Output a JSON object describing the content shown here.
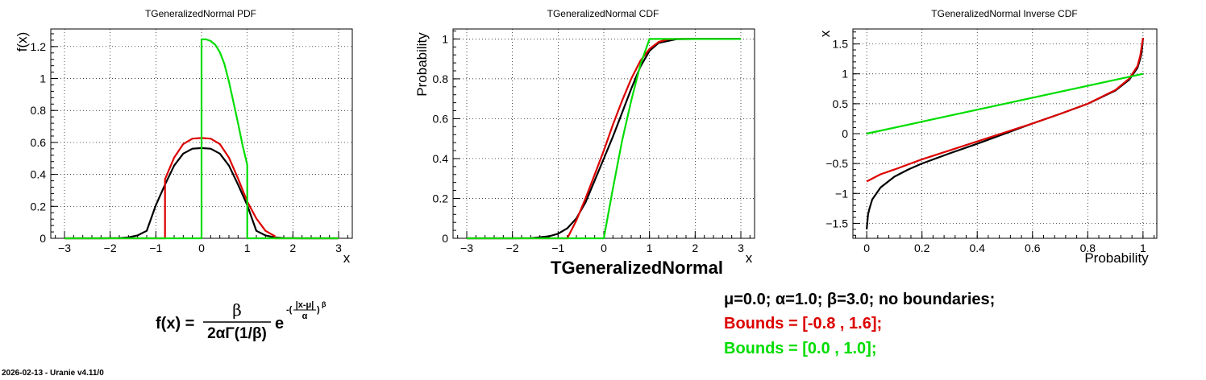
{
  "chart_data": [
    {
      "type": "line",
      "title": "TGeneralizedNormal PDF",
      "xlabel": "x",
      "ylabel": "f(x)",
      "xlim": [
        -3.3,
        3.3
      ],
      "ylim": [
        0,
        1.31
      ],
      "xticks": [
        -3,
        -2,
        -1,
        0,
        1,
        2,
        3
      ],
      "yticks": [
        0,
        0.2,
        0.4,
        0.6,
        0.8,
        1,
        1.2
      ],
      "xtick_labels": [
        "−3",
        "−2",
        "−1",
        "0",
        "1",
        "2",
        "3"
      ],
      "ytick_labels": [
        "0",
        "0.2",
        "0.4",
        "0.6",
        "0.8",
        "1",
        "1.2"
      ],
      "grid": true,
      "series": [
        {
          "color": "#000000",
          "x": [
            -3,
            -2.6,
            -2.2,
            -2,
            -1.8,
            -1.6,
            -1.4,
            -1.2,
            -1,
            -0.8,
            -0.6,
            -0.4,
            -0.2,
            0,
            0.2,
            0.4,
            0.6,
            0.8,
            1,
            1.2,
            1.4,
            1.6,
            1.8,
            2,
            2.2,
            2.6,
            3
          ],
          "y": [
            0,
            0,
            0.0001,
            0.0004,
            0.0016,
            0.0058,
            0.018,
            0.047,
            0.207,
            0.336,
            0.455,
            0.53,
            0.561,
            0.565,
            0.561,
            0.53,
            0.455,
            0.336,
            0.207,
            0.047,
            0.018,
            0.0058,
            0.0016,
            0.0004,
            0.0001,
            0,
            0
          ]
        },
        {
          "color": "#dd0000",
          "x": [
            -3,
            -0.8,
            -0.8,
            -0.6,
            -0.4,
            -0.2,
            0,
            0.2,
            0.4,
            0.6,
            0.8,
            1,
            1.2,
            1.4,
            1.6,
            1.6,
            3
          ],
          "y": [
            0,
            0,
            0.37,
            0.505,
            0.59,
            0.624,
            0.628,
            0.624,
            0.59,
            0.505,
            0.374,
            0.23,
            0.124,
            0.047,
            0.014,
            0,
            0
          ]
        },
        {
          "color": "#00dd00",
          "x": [
            -3,
            0,
            0,
            0.1,
            0.2,
            0.3,
            0.4,
            0.5,
            0.6,
            0.7,
            0.8,
            0.9,
            1,
            1,
            3
          ],
          "y": [
            0,
            0,
            1.245,
            1.245,
            1.235,
            1.211,
            1.165,
            1.092,
            0.98,
            0.85,
            0.72,
            0.58,
            0.46,
            0,
            0
          ]
        }
      ]
    },
    {
      "type": "line",
      "title": "TGeneralizedNormal CDF",
      "xlabel": "x",
      "ylabel": "Probability",
      "xlim": [
        -3.3,
        3.3
      ],
      "ylim": [
        0,
        1.05
      ],
      "xticks": [
        -3,
        -2,
        -1,
        0,
        1,
        2,
        3
      ],
      "yticks": [
        0,
        0.2,
        0.4,
        0.6,
        0.8,
        1
      ],
      "xtick_labels": [
        "−3",
        "−2",
        "−1",
        "0",
        "1",
        "2",
        "3"
      ],
      "ytick_labels": [
        "0",
        "0.2",
        "0.4",
        "0.6",
        "0.8",
        "1"
      ],
      "grid": true,
      "series": [
        {
          "color": "#000000",
          "x": [
            -3,
            -2,
            -1.6,
            -1.2,
            -1,
            -0.8,
            -0.6,
            -0.4,
            -0.2,
            0,
            0.2,
            0.4,
            0.6,
            0.8,
            1,
            1.2,
            1.6,
            2,
            3
          ],
          "y": [
            0,
            0,
            0.001,
            0.01,
            0.023,
            0.05,
            0.1,
            0.18,
            0.29,
            0.4,
            0.51,
            0.63,
            0.75,
            0.86,
            0.94,
            0.98,
            0.999,
            1,
            1
          ]
        },
        {
          "color": "#dd0000",
          "x": [
            -3,
            -0.8,
            -0.6,
            -0.4,
            -0.2,
            0,
            0.2,
            0.4,
            0.6,
            0.8,
            1,
            1.2,
            1.4,
            1.6,
            3
          ],
          "y": [
            0,
            0,
            0.09,
            0.2,
            0.32,
            0.44,
            0.57,
            0.69,
            0.8,
            0.89,
            0.95,
            0.985,
            0.998,
            1,
            1
          ]
        },
        {
          "color": "#00dd00",
          "x": [
            -3,
            0,
            0.2,
            0.4,
            0.6,
            0.8,
            1,
            3
          ],
          "y": [
            0,
            0,
            0.25,
            0.49,
            0.69,
            0.87,
            1,
            1
          ]
        }
      ],
      "annotation": "TGeneralizedNormal"
    },
    {
      "type": "line",
      "title": "TGeneralizedNormal Inverse CDF",
      "xlabel": "Probability",
      "ylabel": "x",
      "xlim": [
        -0.05,
        1.05
      ],
      "ylim": [
        -1.75,
        1.75
      ],
      "xticks": [
        0,
        0.2,
        0.4,
        0.6,
        0.8,
        1
      ],
      "yticks": [
        -1.5,
        -1,
        -0.5,
        0,
        0.5,
        1,
        1.5
      ],
      "xtick_labels": [
        "0",
        "0.2",
        "0.4",
        "0.6",
        "0.8",
        "1"
      ],
      "ytick_labels": [
        "−1.5",
        "−1",
        "−0.5",
        "0",
        "0.5",
        "1",
        "1.5"
      ],
      "grid": true,
      "series": [
        {
          "color": "#000000",
          "x": [
            0,
            0.005,
            0.01,
            0.02,
            0.05,
            0.1,
            0.15,
            0.2,
            0.3,
            0.4,
            0.5,
            0.6,
            0.7,
            0.8,
            0.9,
            0.95,
            0.98,
            0.99,
            0.995,
            1
          ],
          "y": [
            -1.6,
            -1.35,
            -1.25,
            -1.1,
            -0.9,
            -0.72,
            -0.6,
            -0.5,
            -0.33,
            -0.17,
            0,
            0.17,
            0.33,
            0.5,
            0.72,
            0.9,
            1.1,
            1.25,
            1.35,
            1.6
          ]
        },
        {
          "color": "#dd0000",
          "x": [
            0,
            0.05,
            0.1,
            0.2,
            0.3,
            0.4,
            0.5,
            0.6,
            0.7,
            0.8,
            0.9,
            0.95,
            0.98,
            0.99,
            1
          ],
          "y": [
            -0.8,
            -0.68,
            -0.6,
            -0.43,
            -0.28,
            -0.13,
            0.02,
            0.17,
            0.33,
            0.5,
            0.73,
            0.92,
            1.13,
            1.3,
            1.6
          ]
        },
        {
          "color": "#00dd00",
          "x": [
            0,
            1
          ],
          "y": [
            0,
            1
          ]
        }
      ]
    }
  ],
  "formula": {
    "lhs": "f(x) =",
    "numerator": "β",
    "denominator": "2αΓ(1/β)",
    "base": "e",
    "exp_sign": "-(",
    "exp_num": "|x-μ|",
    "exp_den": "α",
    "exp_close": ")",
    "exp_power": "β"
  },
  "legend": [
    {
      "text": "μ=0.0;  α=1.0;  β=3.0;   no boundaries;",
      "color": "#000000"
    },
    {
      "text": "Bounds = [-0.8 , 1.6];",
      "color": "#dd0000"
    },
    {
      "text": "Bounds = [0.0 , 1.0];",
      "color": "#00dd00"
    }
  ],
  "footer": "2026-02-13 - Uranie v4.11/0"
}
